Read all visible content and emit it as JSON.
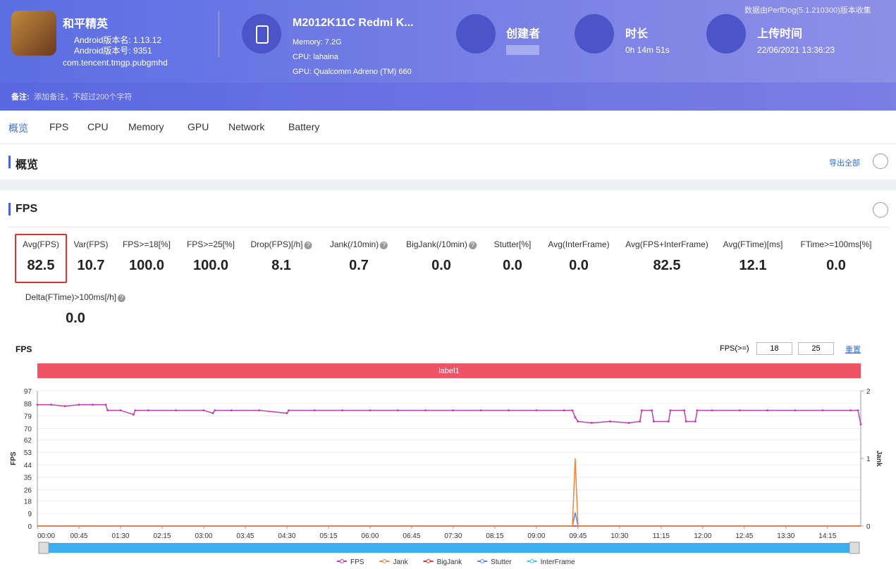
{
  "header": {
    "app_name": "和平精英",
    "version_name": "Android版本名: 1.13.12",
    "version_code": "Android版本号: 9351",
    "package": "com.tencent.tmgp.pubgmhd",
    "device": "M2012K11C Redmi K...",
    "memory": "Memory: 7.2G",
    "cpu": "CPU: lahaina",
    "gpu": "GPU: Qualcomm Adreno (TM) 660",
    "creator_label": "创建者",
    "duration_label": "时长",
    "duration": "0h 14m 51s",
    "upload_label": "上传时间",
    "upload_time": "22/06/2021 13:36:23",
    "source_note": "数据由PerfDog(5.1.210300)版本收集",
    "remark_label": "备注:",
    "remark_placeholder": "添加备注，不超过200个字符"
  },
  "tabs": [
    "概览",
    "FPS",
    "CPU",
    "Memory",
    "GPU",
    "Network",
    "Battery"
  ],
  "overview": {
    "title": "概览",
    "export": "导出全部"
  },
  "fps_section": {
    "title": "FPS",
    "metrics": [
      {
        "label": "Avg(FPS)",
        "value": "82.5"
      },
      {
        "label": "Var(FPS)",
        "value": "10.7"
      },
      {
        "label": "FPS>=18[%]",
        "value": "100.0"
      },
      {
        "label": "FPS>=25[%]",
        "value": "100.0"
      },
      {
        "label": "Drop(FPS)[/h]",
        "value": "8.1"
      },
      {
        "label": "Jank(/10min)",
        "value": "0.7"
      },
      {
        "label": "BigJank(/10min)",
        "value": "0.0"
      },
      {
        "label": "Stutter[%]",
        "value": "0.0"
      },
      {
        "label": "Avg(InterFrame)",
        "value": "0.0"
      },
      {
        "label": "Avg(FPS+InterFrame)",
        "value": "82.5"
      },
      {
        "label": "Avg(FTime)[ms]",
        "value": "12.1"
      },
      {
        "label": "FTime>=100ms[%]",
        "value": "0.0"
      },
      {
        "label": "Delta(FTime)>100ms[/h]",
        "value": "0.0"
      }
    ],
    "threshold_label": "FPS(>=)",
    "threshold1": "18",
    "threshold2": "25",
    "reset": "重置",
    "band_label": "label1"
  },
  "chart_data": {
    "type": "line",
    "title": "FPS",
    "y_label": "FPS",
    "y2_label": "Jank",
    "x": [
      0,
      15,
      30,
      45,
      60,
      74,
      76,
      90,
      104,
      106,
      120,
      150,
      180,
      190,
      192,
      210,
      240,
      270,
      272,
      300,
      330,
      360,
      390,
      420,
      450,
      480,
      510,
      540,
      570,
      579,
      582,
      585,
      600,
      620,
      640,
      652,
      654,
      665,
      667,
      683,
      685,
      700,
      702,
      712,
      714,
      730,
      760,
      790,
      820,
      850,
      880,
      888,
      891
    ],
    "xlim": [
      0,
      891
    ],
    "xticks": [
      {
        "value": 0,
        "label": "00:00"
      },
      {
        "value": 45,
        "label": "00:45"
      },
      {
        "value": 90,
        "label": "01:30"
      },
      {
        "value": 135,
        "label": "02:15"
      },
      {
        "value": 180,
        "label": "03:00"
      },
      {
        "value": 225,
        "label": "03:45"
      },
      {
        "value": 270,
        "label": "04:30"
      },
      {
        "value": 315,
        "label": "05:15"
      },
      {
        "value": 360,
        "label": "06:00"
      },
      {
        "value": 405,
        "label": "06:45"
      },
      {
        "value": 450,
        "label": "07:30"
      },
      {
        "value": 495,
        "label": "08:15"
      },
      {
        "value": 540,
        "label": "09:00"
      },
      {
        "value": 585,
        "label": "09:45"
      },
      {
        "value": 630,
        "label": "10:30"
      },
      {
        "value": 675,
        "label": "11:15"
      },
      {
        "value": 720,
        "label": "12:00"
      },
      {
        "value": 765,
        "label": "12:45"
      },
      {
        "value": 810,
        "label": "13:30"
      },
      {
        "value": 855,
        "label": "14:15"
      }
    ],
    "ylim": [
      0,
      97
    ],
    "yticks": [
      0,
      9,
      18,
      26,
      35,
      44,
      53,
      62,
      70,
      79,
      88,
      97
    ],
    "y2lim": [
      0,
      2
    ],
    "y2ticks": [
      0,
      1,
      2
    ],
    "series": [
      {
        "name": "FPS",
        "color": "#c23fb5",
        "values": [
          87,
          87,
          86,
          87,
          87,
          87,
          83,
          83,
          80,
          83,
          83,
          83,
          83,
          81,
          83,
          83,
          83,
          81,
          83,
          83,
          83,
          83,
          83,
          83,
          83,
          83,
          83,
          83,
          83,
          83,
          78,
          75,
          74,
          75,
          74,
          75,
          83,
          83,
          75,
          75,
          83,
          83,
          75,
          75,
          83,
          83,
          83,
          83,
          83,
          83,
          83,
          83,
          73
        ]
      },
      {
        "name": "Jank",
        "color": "#f0843a",
        "axis": "y2",
        "values": [
          0,
          0,
          0,
          0,
          0,
          0,
          0,
          0,
          0,
          0,
          0,
          0,
          0,
          0,
          0,
          0,
          0,
          0,
          0,
          0,
          0,
          0,
          0,
          0,
          0,
          0,
          0,
          0,
          0,
          0,
          1,
          0,
          0,
          0,
          0,
          0,
          0,
          0,
          0,
          0,
          0,
          0,
          0,
          0,
          0,
          0,
          0,
          0,
          0,
          0,
          0,
          0,
          0
        ]
      },
      {
        "name": "BigJank",
        "color": "#e0342c",
        "axis": "y2",
        "values": [
          0,
          0,
          0,
          0,
          0,
          0,
          0,
          0,
          0,
          0,
          0,
          0,
          0,
          0,
          0,
          0,
          0,
          0,
          0,
          0,
          0,
          0,
          0,
          0,
          0,
          0,
          0,
          0,
          0,
          0,
          0,
          0,
          0,
          0,
          0,
          0,
          0,
          0,
          0,
          0,
          0,
          0,
          0,
          0,
          0,
          0,
          0,
          0,
          0,
          0,
          0,
          0,
          0
        ]
      },
      {
        "name": "Stutter",
        "color": "#5a86e6",
        "axis": "y2",
        "values": [
          0,
          0,
          0,
          0,
          0,
          0,
          0,
          0,
          0,
          0,
          0,
          0,
          0,
          0,
          0,
          0,
          0,
          0,
          0,
          0,
          0,
          0,
          0,
          0,
          0,
          0,
          0,
          0,
          0,
          0,
          0.2,
          0,
          0,
          0,
          0,
          0,
          0,
          0,
          0,
          0,
          0,
          0,
          0,
          0,
          0,
          0,
          0,
          0,
          0,
          0,
          0,
          0,
          0
        ]
      },
      {
        "name": "InterFrame",
        "color": "#45c3e8",
        "axis": "y2",
        "values": [
          0,
          0,
          0,
          0,
          0,
          0,
          0,
          0,
          0,
          0,
          0,
          0,
          0,
          0,
          0,
          0,
          0,
          0,
          0,
          0,
          0,
          0,
          0,
          0,
          0,
          0,
          0,
          0,
          0,
          0,
          0,
          0,
          0,
          0,
          0,
          0,
          0,
          0,
          0,
          0,
          0,
          0,
          0,
          0,
          0,
          0,
          0,
          0,
          0,
          0,
          0,
          0,
          0
        ]
      }
    ]
  }
}
